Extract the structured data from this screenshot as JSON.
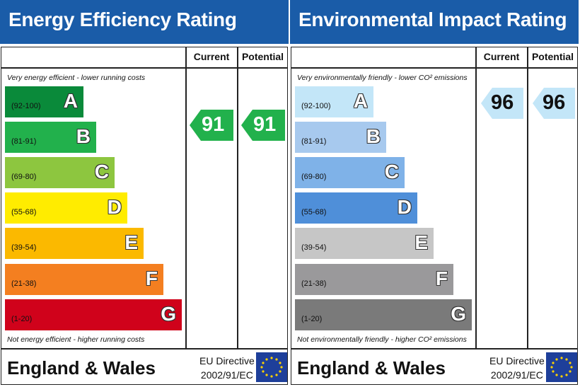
{
  "left": {
    "title": "Energy Efficiency Rating",
    "col_current": "Current",
    "col_potential": "Potential",
    "top_note": "Very energy efficient - lower running costs",
    "bottom_note": "Not energy efficient - higher running costs",
    "bands": [
      {
        "range": "(92-100)",
        "letter": "A",
        "color": "#0a8a3a"
      },
      {
        "range": "(81-91)",
        "letter": "B",
        "color": "#22b14c"
      },
      {
        "range": "(69-80)",
        "letter": "C",
        "color": "#8dc63f"
      },
      {
        "range": "(55-68)",
        "letter": "D",
        "color": "#ffec00"
      },
      {
        "range": "(39-54)",
        "letter": "E",
        "color": "#fbb900"
      },
      {
        "range": "(21-38)",
        "letter": "F",
        "color": "#f47f20"
      },
      {
        "range": "(1-20)",
        "letter": "G",
        "color": "#d0021b"
      }
    ],
    "current_value": "91",
    "potential_value": "91",
    "marker_color": "#22b14c",
    "country": "England & Wales",
    "directive_line1": "EU Directive",
    "directive_line2": "2002/91/EC"
  },
  "right": {
    "title": "Environmental Impact Rating",
    "col_current": "Current",
    "col_potential": "Potential",
    "top_note": "Very environmentally friendly - lower CO² emissions",
    "bottom_note": "Not environmentally friendly - higher CO² emissions",
    "bands": [
      {
        "range": "(92-100)",
        "letter": "A",
        "color": "#c3e6f8"
      },
      {
        "range": "(81-91)",
        "letter": "B",
        "color": "#a7c9ee"
      },
      {
        "range": "(69-80)",
        "letter": "C",
        "color": "#7fb2e8"
      },
      {
        "range": "(55-68)",
        "letter": "D",
        "color": "#4f8fd9"
      },
      {
        "range": "(39-54)",
        "letter": "E",
        "color": "#c6c6c6"
      },
      {
        "range": "(21-38)",
        "letter": "F",
        "color": "#9a999b"
      },
      {
        "range": "(1-20)",
        "letter": "G",
        "color": "#7a7a7a"
      }
    ],
    "current_value": "96",
    "potential_value": "96",
    "marker_color": "#c3e6f8",
    "country": "England & Wales",
    "directive_line1": "EU Directive",
    "directive_line2": "2002/91/EC"
  }
}
